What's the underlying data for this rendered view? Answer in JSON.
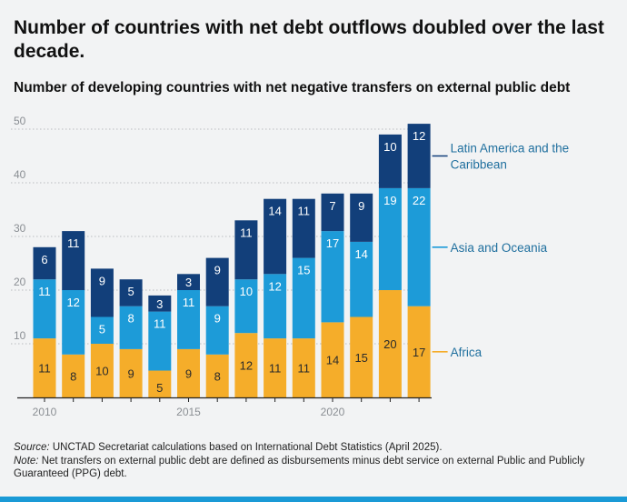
{
  "header": {
    "title": "Number of countries with net debt outflows doubled over the last decade.",
    "subtitle": "Number of developing countries with net negative transfers on external public debt"
  },
  "footer": {
    "source_label": "Source:",
    "source_text": " UNCTAD Secretariat calculations based on International Debt Statistics (April 2025).",
    "note_label": "Note:",
    "note_text": " Net transfers on external public debt are defined as disbursements minus debt service on external Public and Publicly Guaranteed (PPG) debt."
  },
  "colors": {
    "africa": "#f5ad2a",
    "asia_oceania": "#1d9bd8",
    "latin_america": "#123f7a",
    "grid": "#b9bcc0",
    "axis": "#222222",
    "tick_label": "#8a8e93",
    "legend_text": "#1f6f9e",
    "background": "#f2f3f4",
    "accent_bar": "#1a9ad6"
  },
  "chart_data": {
    "type": "bar",
    "stacked": true,
    "x": [
      2010,
      2011,
      2012,
      2013,
      2014,
      2015,
      2016,
      2017,
      2018,
      2019,
      2020,
      2021,
      2022,
      2023
    ],
    "x_tick_labels": [
      "2010",
      "2015",
      "2020"
    ],
    "y_ticks": [
      10,
      20,
      30,
      40,
      50
    ],
    "ylim": [
      0,
      50
    ],
    "grid": true,
    "legend_position": "right",
    "series": [
      {
        "name": "Africa",
        "color_key": "africa",
        "label_color": "#2b2b2b",
        "values": [
          11,
          8,
          10,
          9,
          5,
          9,
          8,
          12,
          11,
          11,
          14,
          15,
          20,
          17
        ]
      },
      {
        "name": "Asia and Oceania",
        "color_key": "asia_oceania",
        "label_color": "#ffffff",
        "values": [
          11,
          12,
          5,
          8,
          11,
          11,
          9,
          10,
          12,
          15,
          17,
          14,
          19,
          22
        ]
      },
      {
        "name": "Latin America and the Caribbean",
        "color_key": "latin_america",
        "label_color": "#ffffff",
        "values": [
          6,
          11,
          9,
          5,
          3,
          3,
          9,
          11,
          14,
          11,
          7,
          9,
          10,
          12
        ]
      }
    ]
  }
}
